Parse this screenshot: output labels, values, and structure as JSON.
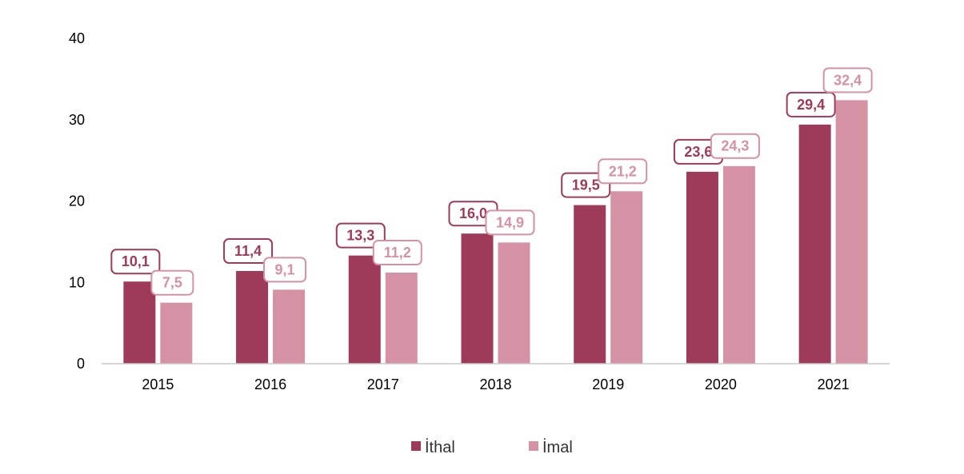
{
  "chart_data": {
    "type": "bar",
    "categories": [
      "2015",
      "2016",
      "2017",
      "2018",
      "2019",
      "2020",
      "2021"
    ],
    "series": [
      {
        "name": "İthal",
        "color": "#9e3a5a",
        "values": [
          10.1,
          11.4,
          13.3,
          16.0,
          19.5,
          23.6,
          29.4
        ],
        "labels": [
          "10,1",
          "11,4",
          "13,3",
          "16,0",
          "19,5",
          "23,6",
          "29,4"
        ]
      },
      {
        "name": "İmal",
        "color": "#d592a5",
        "values": [
          7.5,
          9.1,
          11.2,
          14.9,
          21.2,
          24.3,
          32.4
        ],
        "labels": [
          "7,5",
          "9,1",
          "11,2",
          "14,9",
          "21,2",
          "24,3",
          "32,4"
        ]
      }
    ],
    "yticks": [
      "0",
      "10",
      "20",
      "30",
      "40"
    ],
    "ylim": [
      0,
      40
    ],
    "grid": false,
    "legend_position": "bottom"
  }
}
